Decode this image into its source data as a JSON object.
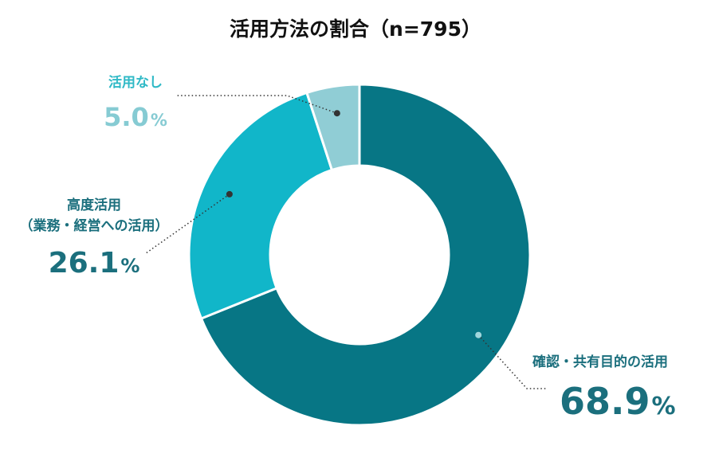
{
  "chart_data": {
    "type": "pie",
    "variant": "donut",
    "title": "活用方法の割合（n=795）",
    "unit": "%",
    "slices": [
      {
        "label": "確認・共有目的の活用",
        "value": 68.9,
        "value_label": "68.9",
        "color": "#077685",
        "label_color": "#1b6f7d",
        "value_color": "#1b6f7d"
      },
      {
        "label": "高度活用\n（業務・経営への活用）",
        "value": 26.1,
        "value_label": "26.1",
        "color": "#11b6c9",
        "label_color": "#1b6f7d",
        "value_color": "#1b6f7d"
      },
      {
        "label": "活用なし",
        "value": 5.0,
        "value_label": "5.0",
        "color": "#90cdd5",
        "label_color": "#2fb9c6",
        "value_color": "#86cbd3"
      }
    ]
  }
}
